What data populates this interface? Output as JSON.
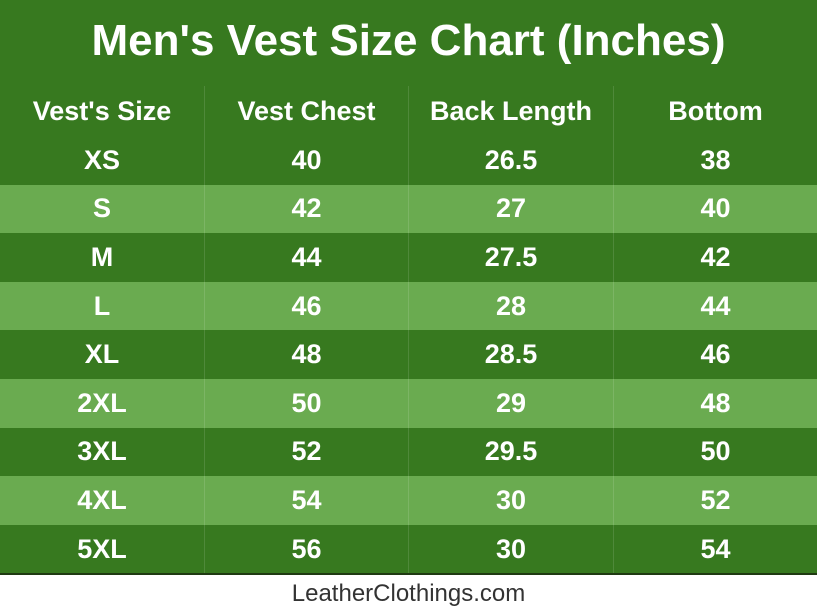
{
  "header": {
    "title": "Men's Vest Size Chart (Inches)"
  },
  "table": {
    "columns": [
      "Vest's Size",
      "Vest Chest",
      "Back Length",
      "Bottom"
    ],
    "rows": [
      [
        "XS",
        40,
        26.5,
        38
      ],
      [
        "S",
        42,
        27,
        40
      ],
      [
        "M",
        44,
        27.5,
        42
      ],
      [
        "L",
        46,
        28,
        44
      ],
      [
        "XL",
        48,
        28.5,
        46
      ],
      [
        "2XL",
        50,
        29,
        48
      ],
      [
        "3XL",
        52,
        29.5,
        50
      ],
      [
        "4XL",
        54,
        30,
        52
      ],
      [
        "5XL",
        56,
        30,
        54
      ]
    ]
  },
  "footer": {
    "text": "LeatherClothings.com"
  }
}
